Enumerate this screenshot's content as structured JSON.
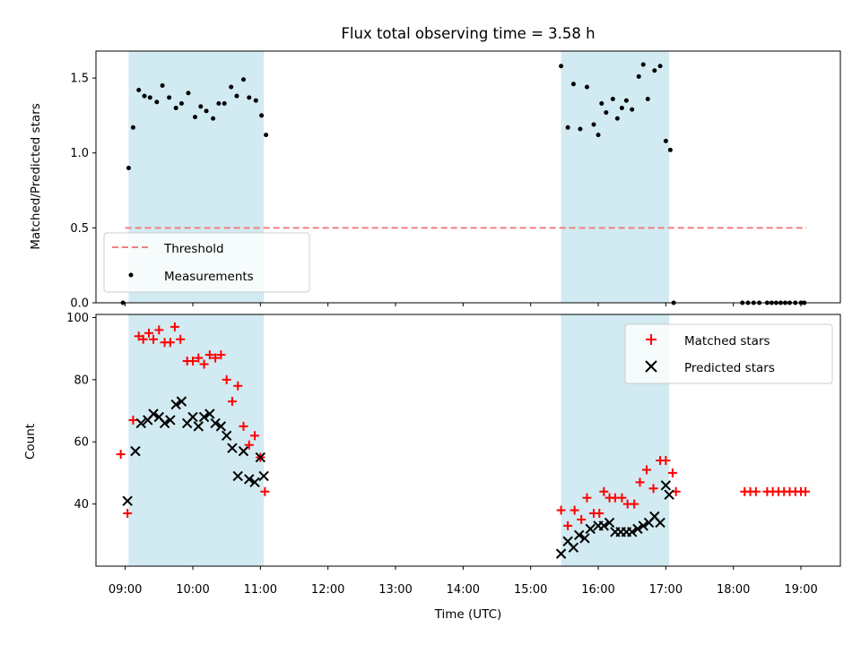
{
  "chart_data": [
    {
      "type": "scatter",
      "title": "Flux total observing time = 3.58 h",
      "ylabel": "Matched/Predicted stars",
      "xlabel": "",
      "xlim": [
        "08:34",
        "19:35"
      ],
      "ylim": [
        0,
        1.68
      ],
      "yticks": [
        0.0,
        0.5,
        1.0,
        1.5
      ],
      "ytick_labels": [
        "0.0",
        "0.5",
        "1.0",
        "1.5"
      ],
      "xticks": [
        "09:00",
        "10:00",
        "11:00",
        "12:00",
        "13:00",
        "14:00",
        "15:00",
        "16:00",
        "17:00",
        "18:00",
        "19:00"
      ],
      "shaded_spans": [
        [
          "09:03",
          "11:03"
        ],
        [
          "15:27",
          "17:03"
        ]
      ],
      "threshold": {
        "name": "Threshold",
        "value": 0.5,
        "x_range": [
          "09:00",
          "19:05"
        ],
        "color": "#f08080",
        "dash": true
      },
      "legend_position": "lower-left",
      "series": [
        {
          "name": "Measurements",
          "color": "#000000",
          "x": [
            "08:58",
            "09:03",
            "09:07",
            "09:12",
            "09:17",
            "09:22",
            "09:28",
            "09:33",
            "09:39",
            "09:45",
            "09:50",
            "09:56",
            "10:02",
            "10:07",
            "10:12",
            "10:18",
            "10:23",
            "10:28",
            "10:34",
            "10:39",
            "10:45",
            "10:50",
            "10:56",
            "11:01",
            "11:05",
            "15:27",
            "15:33",
            "15:38",
            "15:44",
            "15:50",
            "15:56",
            "16:00",
            "16:03",
            "16:07",
            "16:13",
            "16:17",
            "16:21",
            "16:25",
            "16:30",
            "16:36",
            "16:40",
            "16:44",
            "16:50",
            "16:55",
            "17:00",
            "17:04",
            "17:07",
            "18:08",
            "18:13",
            "18:18",
            "18:23",
            "18:30",
            "18:34",
            "18:38",
            "18:42",
            "18:46",
            "18:50",
            "18:55",
            "19:00",
            "19:03"
          ],
          "y": [
            0.0,
            0.9,
            1.17,
            1.42,
            1.38,
            1.37,
            1.34,
            1.45,
            1.37,
            1.3,
            1.33,
            1.4,
            1.24,
            1.31,
            1.28,
            1.23,
            1.33,
            1.33,
            1.44,
            1.38,
            1.49,
            1.37,
            1.35,
            1.25,
            1.12,
            1.58,
            1.17,
            1.46,
            1.16,
            1.44,
            1.19,
            1.12,
            1.33,
            1.27,
            1.36,
            1.23,
            1.3,
            1.35,
            1.29,
            1.51,
            1.59,
            1.36,
            1.55,
            1.58,
            1.08,
            1.02,
            0.0,
            0.0,
            0.0,
            0.0,
            0.0,
            0.0,
            0.0,
            0.0,
            0.0,
            0.0,
            0.0,
            0.0,
            0.0,
            0.0
          ]
        }
      ]
    },
    {
      "type": "scatter",
      "title": "",
      "xlabel": "Time (UTC)",
      "ylabel": "Count",
      "xlim": [
        "08:34",
        "19:35"
      ],
      "ylim": [
        20,
        101
      ],
      "yticks": [
        40,
        60,
        80,
        100
      ],
      "ytick_labels": [
        "40",
        "60",
        "80",
        "100"
      ],
      "xticks": [
        "09:00",
        "10:00",
        "11:00",
        "12:00",
        "13:00",
        "14:00",
        "15:00",
        "16:00",
        "17:00",
        "18:00",
        "19:00"
      ],
      "xtick_labels": [
        "09:00",
        "10:00",
        "11:00",
        "12:00",
        "13:00",
        "14:00",
        "15:00",
        "16:00",
        "17:00",
        "18:00",
        "19:00"
      ],
      "shaded_spans": [
        [
          "09:03",
          "11:03"
        ],
        [
          "15:27",
          "17:03"
        ]
      ],
      "legend_position": "top-right",
      "series": [
        {
          "name": "Matched stars",
          "marker": "plus",
          "color": "#ff0000",
          "x": [
            "08:56",
            "09:02",
            "09:07",
            "09:12",
            "09:16",
            "09:21",
            "09:25",
            "09:30",
            "09:35",
            "09:40",
            "09:44",
            "09:49",
            "09:55",
            "10:00",
            "10:05",
            "10:10",
            "10:15",
            "10:20",
            "10:25",
            "10:30",
            "10:35",
            "10:40",
            "10:45",
            "10:50",
            "10:55",
            "11:00",
            "11:04",
            "15:27",
            "15:33",
            "15:39",
            "15:45",
            "15:50",
            "15:56",
            "16:01",
            "16:05",
            "16:10",
            "16:15",
            "16:21",
            "16:26",
            "16:32",
            "16:37",
            "16:43",
            "16:49",
            "16:55",
            "17:00",
            "17:06",
            "17:09",
            "18:10",
            "18:15",
            "18:20",
            "18:30",
            "18:35",
            "18:40",
            "18:45",
            "18:50",
            "18:55",
            "19:00",
            "19:04"
          ],
          "y": [
            56,
            37,
            67,
            94,
            93,
            95,
            93,
            96,
            92,
            92,
            97,
            93,
            86,
            86,
            87,
            85,
            88,
            87,
            88,
            80,
            73,
            78,
            65,
            59,
            62,
            55,
            44,
            38,
            33,
            38,
            35,
            42,
            37,
            37,
            44,
            42,
            42,
            42,
            40,
            40,
            47,
            51,
            45,
            54,
            54,
            50,
            44,
            44,
            44,
            44,
            44,
            44,
            44,
            44,
            44,
            44,
            44,
            44
          ]
        },
        {
          "name": "Predicted stars",
          "marker": "x",
          "color": "#000000",
          "x": [
            "09:02",
            "09:09",
            "09:14",
            "09:20",
            "09:25",
            "09:30",
            "09:35",
            "09:40",
            "09:45",
            "09:50",
            "09:55",
            "10:00",
            "10:05",
            "10:10",
            "10:15",
            "10:20",
            "10:25",
            "10:30",
            "10:35",
            "10:40",
            "10:45",
            "10:50",
            "10:55",
            "11:00",
            "11:03",
            "15:27",
            "15:33",
            "15:38",
            "15:43",
            "15:48",
            "15:53",
            "16:00",
            "16:05",
            "16:10",
            "16:15",
            "16:20",
            "16:25",
            "16:30",
            "16:35",
            "16:40",
            "16:45",
            "16:50",
            "16:55",
            "17:00",
            "17:03"
          ],
          "y": [
            41,
            57,
            66,
            67,
            69,
            68,
            66,
            67,
            72,
            73,
            66,
            68,
            65,
            68,
            69,
            66,
            65,
            62,
            58,
            49,
            57,
            48,
            47,
            55,
            49,
            24,
            28,
            26,
            30,
            29,
            32,
            33,
            33,
            34,
            31,
            31,
            31,
            31,
            32,
            33,
            34,
            36,
            34,
            46,
            43
          ]
        }
      ]
    }
  ]
}
